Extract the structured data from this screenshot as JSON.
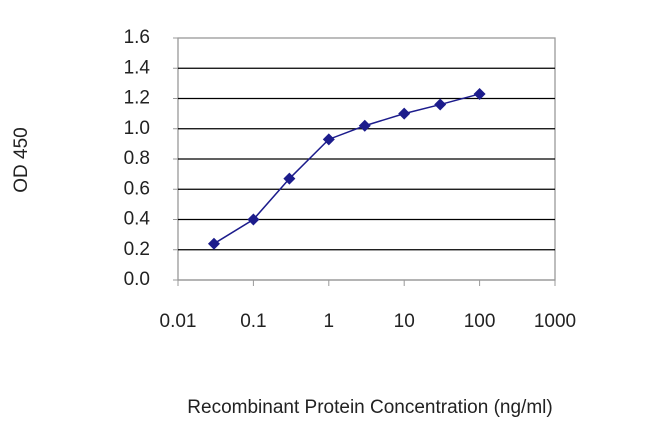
{
  "chart_data": {
    "type": "line",
    "x_label": "Recombinant Protein Concentration (ng/ml)",
    "y_label": "OD 450",
    "x": [
      0.03,
      0.1,
      0.3,
      1,
      3,
      10,
      30,
      100
    ],
    "values": [
      0.24,
      0.4,
      0.67,
      0.93,
      1.02,
      1.1,
      1.16,
      1.23
    ],
    "color": "#1c1c8c",
    "x_log": true,
    "xlim": [
      0.01,
      1000
    ],
    "xticks": [
      0.01,
      0.1,
      1,
      10,
      100,
      1000
    ],
    "ylim": [
      0,
      1.6
    ],
    "yticks": [
      {
        "value": 0,
        "label": "0.0"
      },
      0.2,
      0.4,
      0.6,
      0.8,
      {
        "value": 1,
        "label": "1.0"
      },
      1.2,
      1.4,
      1.6
    ],
    "grid": true
  }
}
